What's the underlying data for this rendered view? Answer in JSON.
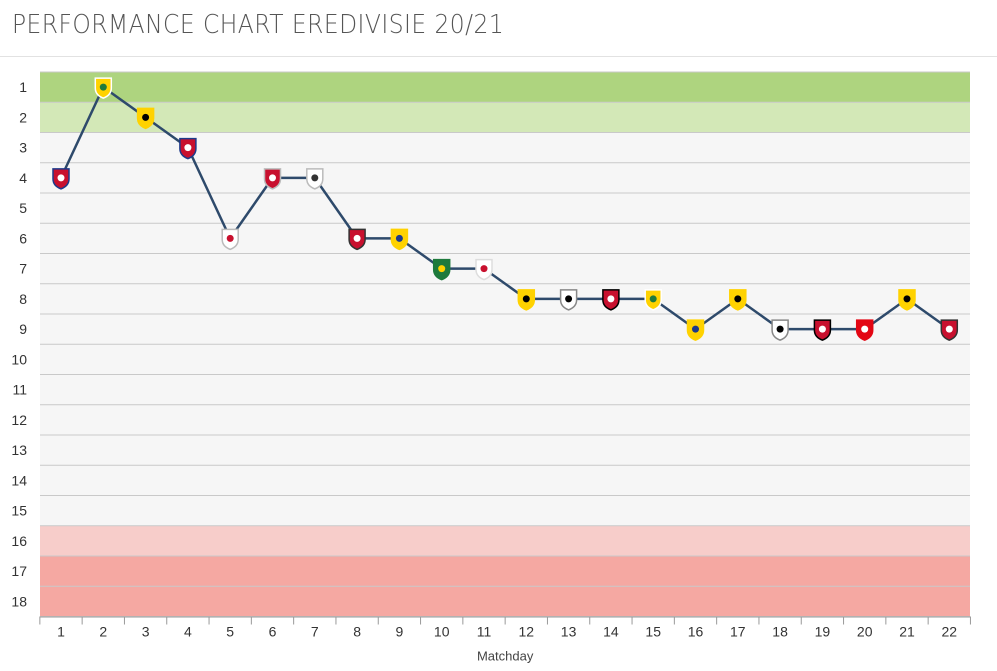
{
  "page": {
    "title": "PERFORMANCE CHART EREDIVISIE 20/21"
  },
  "chart_data": {
    "type": "line",
    "title": "PERFORMANCE CHART EREDIVISIE 20/21",
    "xlabel": "Matchday",
    "ylabel": "",
    "x": [
      1,
      2,
      3,
      4,
      5,
      6,
      7,
      8,
      9,
      10,
      11,
      12,
      13,
      14,
      15,
      16,
      17,
      18,
      19,
      20,
      21,
      22
    ],
    "y_ticks": [
      1,
      2,
      3,
      4,
      5,
      6,
      7,
      8,
      9,
      10,
      11,
      12,
      13,
      14,
      15,
      16,
      17,
      18
    ],
    "y_inverted": true,
    "ylim": [
      1,
      18
    ],
    "grid": true,
    "series": [
      {
        "values": [
          4,
          1,
          2,
          3,
          6,
          4,
          4,
          6,
          6,
          7,
          7,
          8,
          8,
          8,
          8,
          9,
          8,
          9,
          9,
          9,
          8,
          9
        ],
        "color": "#2e4a6b",
        "opponent_icons": [
          "willem-ii-icon",
          "fortuna-sittard-icon",
          "vvv-venlo-icon",
          "fc-utrecht-icon",
          "ajax-icon",
          "fc-emmen-icon",
          "heracles-icon",
          "az-icon",
          "rkc-waalwijk-icon",
          "ado-den-haag-icon",
          "psv-icon",
          "vitesse-icon",
          "heracles-almelo-icon",
          "feyenoord-icon",
          "fortuna-sittard-icon",
          "rkc-waalwijk-icon",
          "vvv-venlo-icon",
          "heracles-almelo-icon",
          "feyenoord-icon",
          "fc-twente-icon",
          "vitesse-icon",
          "az-icon"
        ]
      }
    ],
    "bands": [
      {
        "from": 1,
        "to": 1,
        "color": "#aed47f"
      },
      {
        "from": 2,
        "to": 2,
        "color": "#d3e8b7"
      },
      {
        "from": 3,
        "to": 15,
        "color": "#f6f6f6"
      },
      {
        "from": 16,
        "to": 16,
        "color": "#f7cdca"
      },
      {
        "from": 17,
        "to": 18,
        "color": "#f5a8a2"
      }
    ]
  }
}
